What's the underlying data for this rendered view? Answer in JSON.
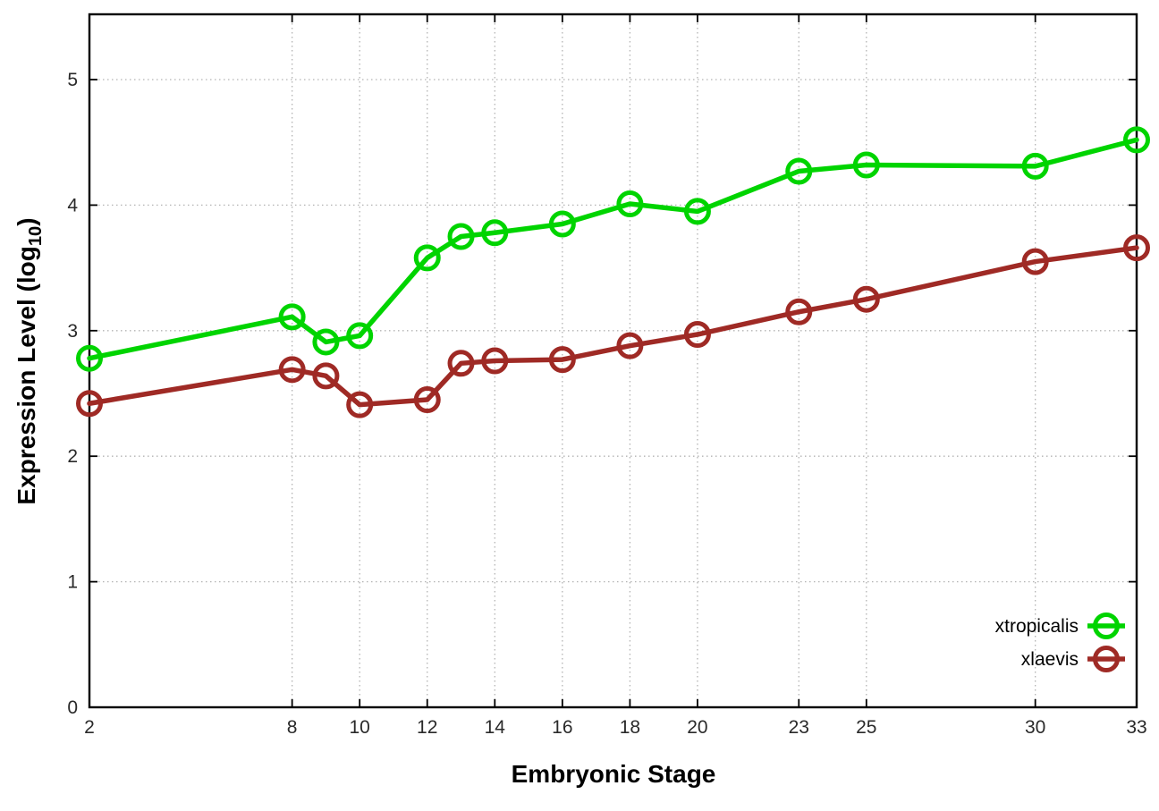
{
  "chart_data": {
    "type": "line",
    "title": "",
    "xlabel": "Embryonic Stage",
    "ylabel": "Expression Level (log10)",
    "ylabel_parts": {
      "main": "Expression Level (log",
      "sub": "10",
      "end": ")"
    },
    "x": [
      2,
      8,
      9,
      10,
      12,
      13,
      14,
      16,
      18,
      20,
      23,
      25,
      30,
      33
    ],
    "xticks": [
      2,
      8,
      10,
      12,
      14,
      16,
      18,
      20,
      23,
      25,
      30,
      33
    ],
    "yticks": [
      0,
      1,
      2,
      3,
      4,
      5
    ],
    "xlim": [
      2,
      33
    ],
    "ylim": [
      0,
      5.52
    ],
    "grid": "dotted",
    "legend_position": "inside-right",
    "series": [
      {
        "name": "xtropicalis",
        "color": "#00d400",
        "values": [
          2.78,
          3.11,
          2.91,
          2.96,
          3.58,
          3.75,
          3.78,
          3.85,
          4.01,
          3.95,
          4.27,
          4.32,
          4.31,
          4.52
        ]
      },
      {
        "name": "xlaevis",
        "color": "#9f2a25",
        "values": [
          2.42,
          2.69,
          2.64,
          2.41,
          2.45,
          2.74,
          2.76,
          2.77,
          2.88,
          2.97,
          3.15,
          3.25,
          3.55,
          3.66
        ]
      }
    ],
    "colors": {
      "frame": "#000000",
      "grid": "#b3b3b3",
      "tick_label": "#2a2a2a",
      "background": "#ffffff"
    }
  }
}
